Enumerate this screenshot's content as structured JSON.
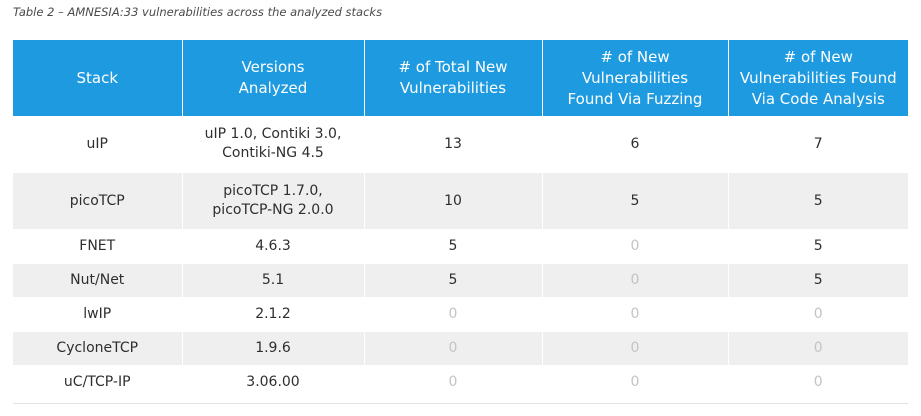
{
  "caption": "Table 2 – AMNESIA:33 vulnerabilities across the analyzed stacks",
  "headers": [
    [
      "Stack"
    ],
    [
      "Versions",
      "Analyzed"
    ],
    [
      "# of Total New",
      "Vulnerabilities"
    ],
    [
      "# of New",
      "Vulnerabilities",
      "Found Via Fuzzing"
    ],
    [
      "# of New",
      "Vulnerabilities Found",
      "Via Code Analysis"
    ]
  ],
  "rows": [
    {
      "stack": "uIP",
      "versions": [
        "uIP 1.0, Contiki 3.0,",
        "Contiki-NG 4.5"
      ],
      "total": "13",
      "fuzzing": "6",
      "code_analysis": "7"
    },
    {
      "stack": "picoTCP",
      "versions": [
        "picoTCP 1.7.0,",
        "picoTCP-NG 2.0.0"
      ],
      "total": "10",
      "fuzzing": "5",
      "code_analysis": "5"
    },
    {
      "stack": "FNET",
      "versions": [
        "4.6.3"
      ],
      "total": "5",
      "fuzzing": "0",
      "code_analysis": "5"
    },
    {
      "stack": "Nut/Net",
      "versions": [
        "5.1"
      ],
      "total": "5",
      "fuzzing": "0",
      "code_analysis": "5"
    },
    {
      "stack": "lwIP",
      "versions": [
        "2.1.2"
      ],
      "total": "0",
      "fuzzing": "0",
      "code_analysis": "0"
    },
    {
      "stack": "CycloneTCP",
      "versions": [
        "1.9.6"
      ],
      "total": "0",
      "fuzzing": "0",
      "code_analysis": "0"
    },
    {
      "stack": "uC/TCP-IP",
      "versions": [
        "3.06.00"
      ],
      "total": "0",
      "fuzzing": "0",
      "code_analysis": "0"
    }
  ],
  "colors": {
    "header_bg": "#1e9ae0",
    "header_text": "#ffffff",
    "row_alt_bg": "#efefef",
    "cell_text": "#2e2e2e",
    "zero_text": "#c4c4c4"
  }
}
